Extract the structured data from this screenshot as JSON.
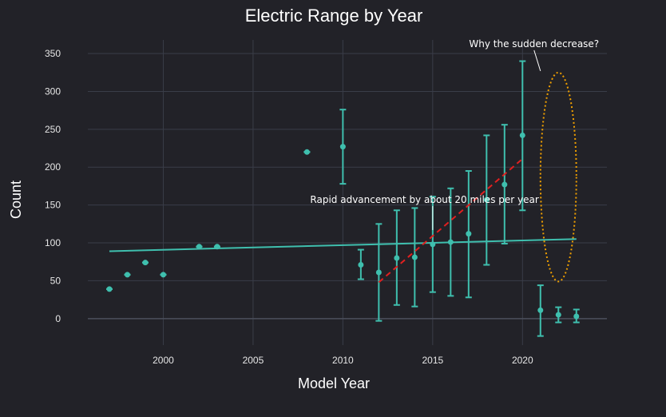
{
  "chart_data": {
    "type": "scatter",
    "title": "Electric Range by Year",
    "xlabel": "Model Year",
    "ylabel": "Count",
    "xlim": [
      1995.8,
      2024.7
    ],
    "ylim": [
      -35,
      368
    ],
    "x_ticks": [
      2000,
      2005,
      2010,
      2015,
      2020
    ],
    "y_ticks": [
      0,
      50,
      100,
      150,
      200,
      250,
      300,
      350
    ],
    "grid": true,
    "legend": "none",
    "series": [
      {
        "mode": "markers+error_bars",
        "x": [
          1997,
          1998,
          1999,
          2000,
          2002,
          2003,
          2008,
          2010,
          2011,
          2012,
          2013,
          2014,
          2015,
          2016,
          2017,
          2018,
          2019,
          2020,
          2021,
          2022,
          2023
        ],
        "y": [
          39,
          58,
          74,
          58,
          95,
          95,
          220,
          227,
          71,
          61,
          80,
          81,
          98,
          101,
          112,
          157,
          177,
          242,
          11,
          5,
          3
        ],
        "y_low": [
          39,
          58,
          74,
          58,
          95,
          95,
          220,
          178,
          52,
          -3,
          18,
          16,
          35,
          30,
          28,
          71,
          99,
          143,
          -23,
          -5,
          -5
        ],
        "y_high": [
          39,
          58,
          74,
          58,
          95,
          95,
          220,
          276,
          91,
          125,
          143,
          146,
          161,
          172,
          195,
          242,
          256,
          340,
          44,
          15,
          12
        ]
      },
      {
        "mode": "trendline",
        "x": [
          1997,
          2023
        ],
        "y": [
          89,
          105
        ]
      },
      {
        "mode": "dashed-trend",
        "x": [
          2012,
          2020
        ],
        "y": [
          48,
          211
        ]
      }
    ],
    "annotations": [
      {
        "text": "Rapid advancement by about 20 miles per year",
        "point": [
          2015,
          117
        ]
      },
      {
        "text": "Why the sudden decrease?",
        "point": [
          2021,
          327
        ]
      }
    ],
    "highlight_ellipse": {
      "center": [
        2022,
        187
      ],
      "rx_years": 1.0,
      "ry_units": 138
    }
  },
  "colors": {
    "background": "#222228",
    "grid": "#3a3d48",
    "zero_line": "#4b4f5c",
    "marker": "#3fbfae",
    "trend": "#3fbfae",
    "dashed_trend": "#e02020",
    "ellipse": "#f0a000",
    "text": "#e6e6e6"
  }
}
